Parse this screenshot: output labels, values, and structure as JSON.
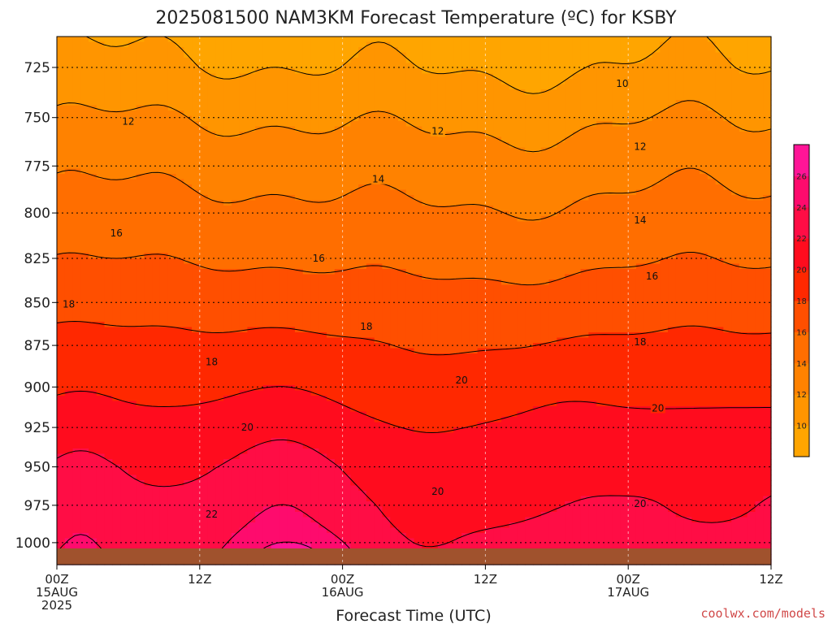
{
  "chart_data": {
    "type": "heatmap",
    "title": "2025081500 NAM3KM Forecast Temperature (ºC) for KSBY",
    "xlabel": "Forecast Time (UTC)",
    "ylabel": "",
    "credit": "coolwx.com/models",
    "x_ticks": [
      {
        "hour": 0,
        "lines": [
          "00Z",
          "15AUG",
          "2025"
        ]
      },
      {
        "hour": 12,
        "lines": [
          "12Z"
        ]
      },
      {
        "hour": 24,
        "lines": [
          "00Z",
          "16AUG"
        ]
      },
      {
        "hour": 36,
        "lines": [
          "12Z"
        ]
      },
      {
        "hour": 48,
        "lines": [
          "00Z",
          "17AUG"
        ]
      },
      {
        "hour": 60,
        "lines": [
          "12Z"
        ]
      }
    ],
    "xlim": [
      0,
      60
    ],
    "y_ticks": [
      725,
      750,
      775,
      800,
      825,
      850,
      875,
      900,
      925,
      950,
      975,
      1000
    ],
    "ylim": [
      710,
      1015
    ],
    "y_scale": "log-pressure (inverted)",
    "grid": true,
    "colorbar": {
      "ticks": [
        10,
        12,
        14,
        16,
        18,
        20,
        22,
        24,
        26
      ],
      "range": [
        8,
        28
      ],
      "placement": "right",
      "colors": [
        "#ffa500",
        "#ff9500",
        "#ff8200",
        "#ff6e00",
        "#ff4f00",
        "#ff2800",
        "#ff0c1e",
        "#ff0d45",
        "#fe0b6d",
        "#ff1597"
      ]
    },
    "terrain_color": "#a0522d",
    "contour_labels": [
      {
        "value": "10",
        "hour": 47.5,
        "p": 733
      },
      {
        "value": "12",
        "hour": 6,
        "p": 752
      },
      {
        "value": "12",
        "hour": 32,
        "p": 757
      },
      {
        "value": "12",
        "hour": 49,
        "p": 765
      },
      {
        "value": "14",
        "hour": 27,
        "p": 782
      },
      {
        "value": "14",
        "hour": 49,
        "p": 804
      },
      {
        "value": "16",
        "hour": 5,
        "p": 811
      },
      {
        "value": "16",
        "hour": 22,
        "p": 825
      },
      {
        "value": "16",
        "hour": 50,
        "p": 835
      },
      {
        "value": "18",
        "hour": 1,
        "p": 851
      },
      {
        "value": "18",
        "hour": 26,
        "p": 864
      },
      {
        "value": "18",
        "hour": 13,
        "p": 885
      },
      {
        "value": "18",
        "hour": 49,
        "p": 873
      },
      {
        "value": "20",
        "hour": 34,
        "p": 896
      },
      {
        "value": "20",
        "hour": 50.5,
        "p": 913
      },
      {
        "value": "20",
        "hour": 16,
        "p": 925
      },
      {
        "value": "20",
        "hour": 32,
        "p": 966
      },
      {
        "value": "20",
        "hour": 49,
        "p": 974
      },
      {
        "value": "22",
        "hour": 13,
        "p": 981
      }
    ]
  }
}
